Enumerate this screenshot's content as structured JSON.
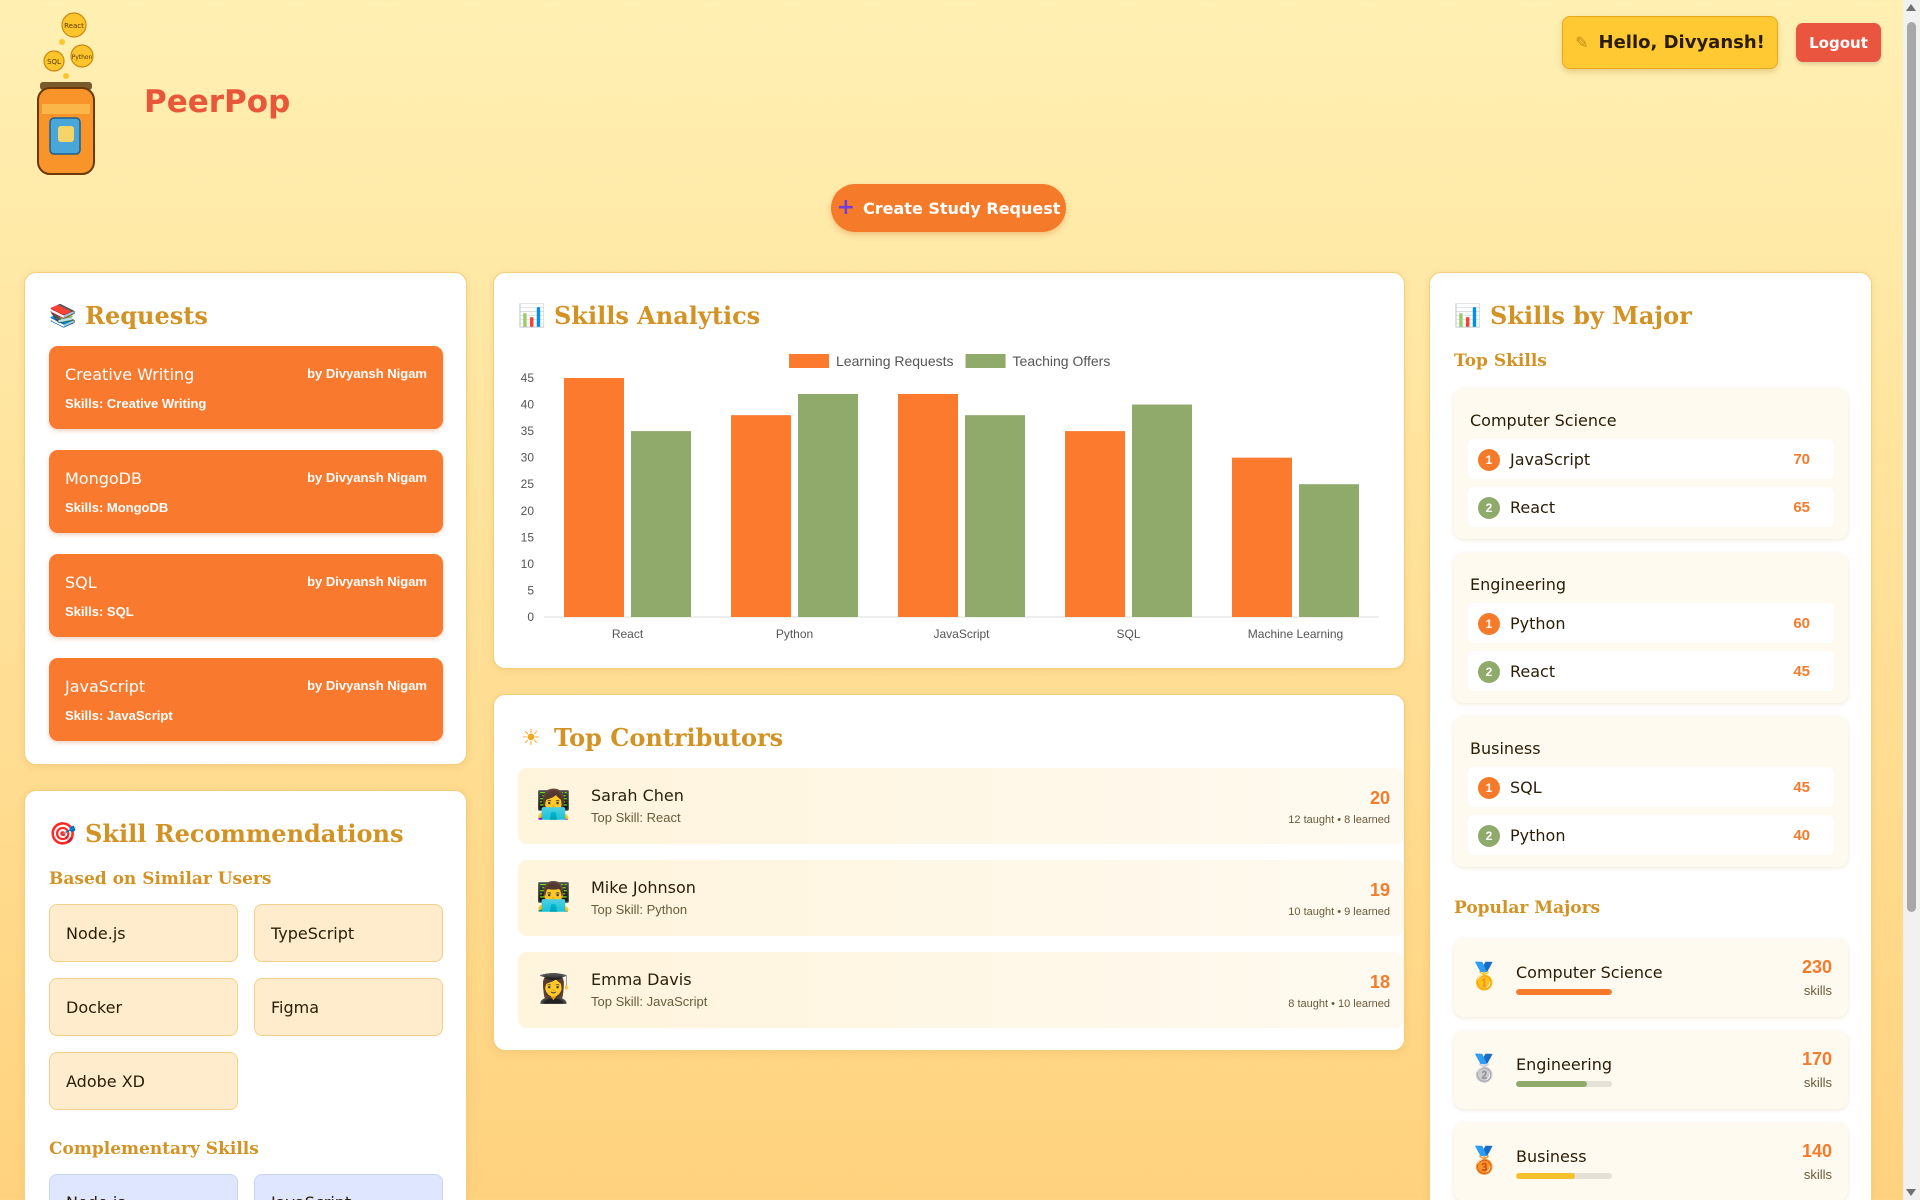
{
  "header": {
    "logo_bubbles": [
      "React",
      "SQL",
      "Python"
    ],
    "brand": "PeerPop",
    "greeting_icon": "pencil-icon",
    "greeting": "Hello, Divyansh!",
    "logout_label": "Logout",
    "create_label": "Create Study Request"
  },
  "requests": {
    "title": "Requests",
    "icon": "books-icon",
    "items": [
      {
        "title": "Creative Writing",
        "by": "by Divyansh Nigam",
        "skills": "Skills: Creative Writing"
      },
      {
        "title": "MongoDB",
        "by": "by Divyansh Nigam",
        "skills": "Skills: MongoDB"
      },
      {
        "title": "SQL",
        "by": "by Divyansh Nigam",
        "skills": "Skills: SQL"
      },
      {
        "title": "JavaScript",
        "by": "by Divyansh Nigam",
        "skills": "Skills: JavaScript"
      }
    ]
  },
  "recommendations": {
    "title": "Skill Recommendations",
    "icon": "target-icon",
    "similar_title": "Based on Similar Users",
    "similar": [
      "Node.js",
      "TypeScript",
      "Docker",
      "Figma",
      "Adobe XD"
    ],
    "complementary_title": "Complementary Skills",
    "complementary": [
      "Node.js",
      "JavaScript"
    ]
  },
  "analytics": {
    "title": "Skills Analytics",
    "icon": "bar-chart-icon"
  },
  "chart_data": {
    "type": "bar",
    "categories": [
      "React",
      "Python",
      "JavaScript",
      "SQL",
      "Machine Learning"
    ],
    "series": [
      {
        "name": "Learning Requests",
        "values": [
          45,
          38,
          42,
          35,
          30
        ],
        "color": "#fb7a2e"
      },
      {
        "name": "Teaching Offers",
        "values": [
          35,
          42,
          38,
          40,
          25
        ],
        "color": "#8faa6a"
      }
    ],
    "yticks": [
      "0",
      "5",
      "10",
      "15",
      "20",
      "25",
      "30",
      "35",
      "40",
      "45"
    ],
    "ylim": [
      0,
      45
    ],
    "legend": "top-center",
    "grid": false
  },
  "contributors": {
    "title": "Top Contributors",
    "icon": "sun-icon",
    "items": [
      {
        "name": "Sarah Chen",
        "top_skill": "Top Skill: React",
        "score": "20",
        "stats": "12 taught • 8 learned",
        "avatar": "👩‍💻"
      },
      {
        "name": "Mike Johnson",
        "top_skill": "Top Skill: Python",
        "score": "19",
        "stats": "10 taught • 9 learned",
        "avatar": "👨‍💻"
      },
      {
        "name": "Emma Davis",
        "top_skill": "Top Skill: JavaScript",
        "score": "18",
        "stats": "8 taught • 10 learned",
        "avatar": "👩‍🎓"
      }
    ]
  },
  "majors": {
    "title": "Skills by Major",
    "icon": "bar-chart-icon",
    "top_skills_title": "Top Skills",
    "groups": [
      {
        "name": "Computer Science",
        "skills": [
          {
            "rank": "1",
            "name": "JavaScript",
            "value": "70"
          },
          {
            "rank": "2",
            "name": "React",
            "value": "65"
          }
        ]
      },
      {
        "name": "Engineering",
        "skills": [
          {
            "rank": "1",
            "name": "Python",
            "value": "60"
          },
          {
            "rank": "2",
            "name": "React",
            "value": "45"
          }
        ]
      },
      {
        "name": "Business",
        "skills": [
          {
            "rank": "1",
            "name": "SQL",
            "value": "45"
          },
          {
            "rank": "2",
            "name": "Python",
            "value": "40"
          }
        ]
      }
    ],
    "popular_title": "Popular Majors",
    "popular": [
      {
        "name": "Computer Science",
        "value": "230",
        "unit": "skills",
        "medal": "🥇",
        "fill": 1.0,
        "color": "#f57b2b"
      },
      {
        "name": "Engineering",
        "value": "170",
        "unit": "skills",
        "medal": "🥈",
        "fill": 0.74,
        "color": "#8faa6a"
      },
      {
        "name": "Business",
        "value": "140",
        "unit": "skills",
        "medal": "🥉",
        "fill": 0.61,
        "color": "#f5c02b"
      }
    ]
  },
  "colors": {
    "accent": "#f57b2b",
    "title": "#d29224",
    "logout": "#ea5540",
    "greeting": "#ffc933"
  }
}
